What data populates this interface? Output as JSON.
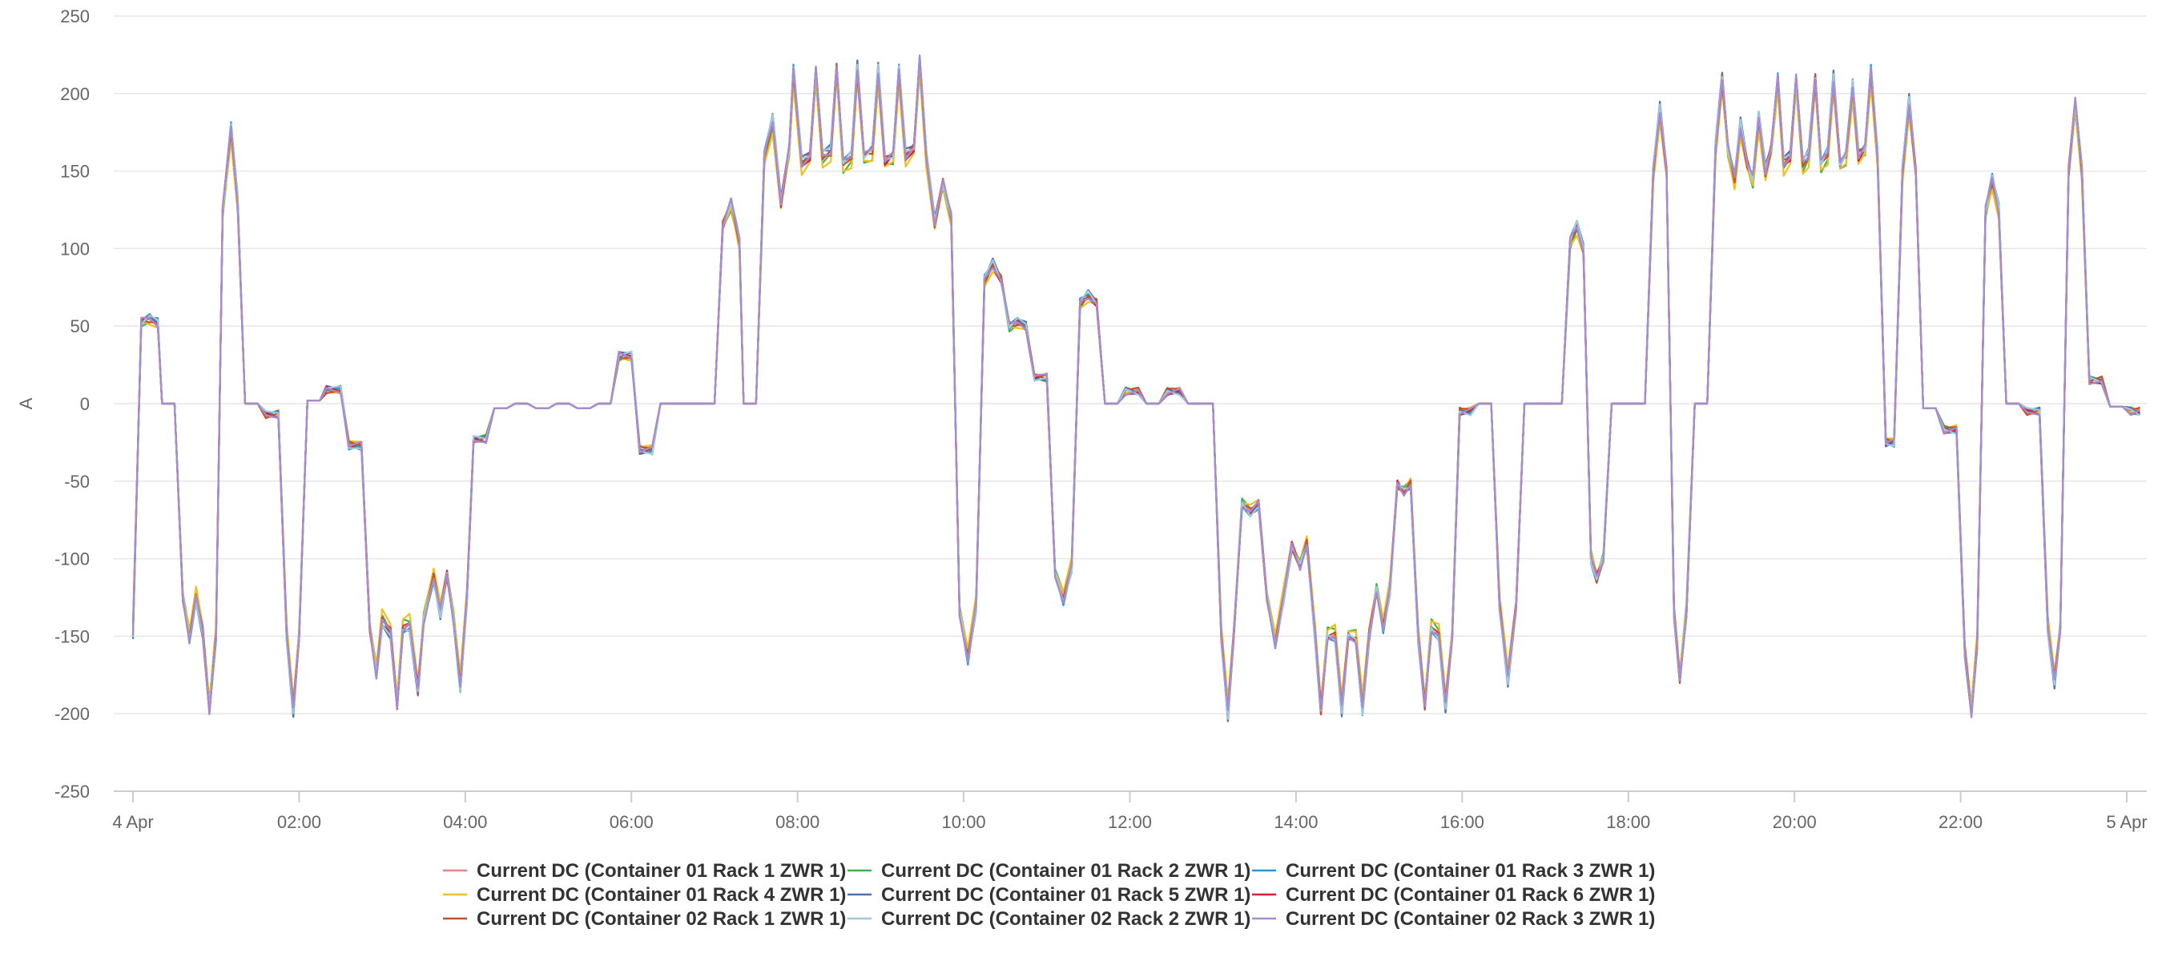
{
  "chart_data": {
    "type": "line",
    "ylabel": "A",
    "ylim": [
      -250,
      250
    ],
    "yticks": [
      250,
      200,
      150,
      100,
      50,
      0,
      -50,
      -100,
      -150,
      -200,
      -250
    ],
    "xlim": [
      0,
      24
    ],
    "xticks": [
      {
        "x": 0,
        "label": "4 Apr"
      },
      {
        "x": 2,
        "label": "02:00"
      },
      {
        "x": 4,
        "label": "04:00"
      },
      {
        "x": 6,
        "label": "06:00"
      },
      {
        "x": 8,
        "label": "08:00"
      },
      {
        "x": 10,
        "label": "10:00"
      },
      {
        "x": 12,
        "label": "12:00"
      },
      {
        "x": 14,
        "label": "14:00"
      },
      {
        "x": 16,
        "label": "16:00"
      },
      {
        "x": 18,
        "label": "18:00"
      },
      {
        "x": 20,
        "label": "20:00"
      },
      {
        "x": 22,
        "label": "22:00"
      },
      {
        "x": 24,
        "label": "5 Apr"
      }
    ],
    "grid": true,
    "legend_position": "bottom",
    "x_unit": "hours since 4 Apr 00:00",
    "base_profile": [
      [
        0.0,
        -148
      ],
      [
        0.1,
        53
      ],
      [
        0.2,
        55
      ],
      [
        0.3,
        52
      ],
      [
        0.35,
        0
      ],
      [
        0.5,
        0
      ],
      [
        0.6,
        -125
      ],
      [
        0.68,
        -152
      ],
      [
        0.76,
        -125
      ],
      [
        0.84,
        -148
      ],
      [
        0.92,
        -198
      ],
      [
        1.0,
        -150
      ],
      [
        1.08,
        125
      ],
      [
        1.18,
        178
      ],
      [
        1.26,
        130
      ],
      [
        1.35,
        0
      ],
      [
        1.5,
        0
      ],
      [
        1.6,
        -7
      ],
      [
        1.75,
        -7
      ],
      [
        1.85,
        -150
      ],
      [
        1.93,
        -198
      ],
      [
        2.0,
        -150
      ],
      [
        2.1,
        2
      ],
      [
        2.25,
        2
      ],
      [
        2.33,
        9
      ],
      [
        2.5,
        9
      ],
      [
        2.6,
        -27
      ],
      [
        2.75,
        -27
      ],
      [
        2.85,
        -145
      ],
      [
        2.93,
        -175
      ],
      [
        3.0,
        -140
      ],
      [
        3.1,
        -148
      ],
      [
        3.18,
        -195
      ],
      [
        3.25,
        -145
      ],
      [
        3.33,
        -143
      ],
      [
        3.43,
        -185
      ],
      [
        3.5,
        -140
      ],
      [
        3.62,
        -112
      ],
      [
        3.7,
        -135
      ],
      [
        3.78,
        -110
      ],
      [
        3.86,
        -140
      ],
      [
        3.94,
        -183
      ],
      [
        4.02,
        -125
      ],
      [
        4.1,
        -23
      ],
      [
        4.25,
        -23
      ],
      [
        4.35,
        -3
      ],
      [
        4.5,
        -3
      ],
      [
        4.6,
        0
      ],
      [
        4.75,
        0
      ],
      [
        4.85,
        -3
      ],
      [
        5.0,
        -3
      ],
      [
        5.1,
        0
      ],
      [
        5.25,
        0
      ],
      [
        5.35,
        -3
      ],
      [
        5.5,
        -3
      ],
      [
        5.6,
        0
      ],
      [
        5.75,
        0
      ],
      [
        5.85,
        31
      ],
      [
        6.0,
        31
      ],
      [
        6.1,
        -30
      ],
      [
        6.25,
        -30
      ],
      [
        6.35,
        0
      ],
      [
        7.0,
        0
      ],
      [
        7.1,
        115
      ],
      [
        7.2,
        130
      ],
      [
        7.3,
        105
      ],
      [
        7.35,
        0
      ],
      [
        7.5,
        0
      ],
      [
        7.6,
        160
      ],
      [
        7.7,
        183
      ],
      [
        7.8,
        130
      ],
      [
        7.9,
        165
      ],
      [
        7.95,
        215
      ],
      [
        8.05,
        155
      ],
      [
        8.15,
        160
      ],
      [
        8.22,
        215
      ],
      [
        8.3,
        160
      ],
      [
        8.4,
        163
      ],
      [
        8.47,
        217
      ],
      [
        8.55,
        155
      ],
      [
        8.65,
        160
      ],
      [
        8.72,
        217
      ],
      [
        8.8,
        160
      ],
      [
        8.9,
        163
      ],
      [
        8.97,
        215
      ],
      [
        9.05,
        157
      ],
      [
        9.15,
        160
      ],
      [
        9.22,
        215
      ],
      [
        9.3,
        160
      ],
      [
        9.4,
        165
      ],
      [
        9.47,
        222
      ],
      [
        9.55,
        160
      ],
      [
        9.65,
        117
      ],
      [
        9.75,
        143
      ],
      [
        9.85,
        120
      ],
      [
        9.95,
        -135
      ],
      [
        10.05,
        -165
      ],
      [
        10.15,
        -130
      ],
      [
        10.25,
        80
      ],
      [
        10.35,
        90
      ],
      [
        10.45,
        80
      ],
      [
        10.55,
        50
      ],
      [
        10.65,
        53
      ],
      [
        10.75,
        50
      ],
      [
        10.85,
        17
      ],
      [
        11.0,
        17
      ],
      [
        11.1,
        -110
      ],
      [
        11.2,
        -127
      ],
      [
        11.3,
        -105
      ],
      [
        11.4,
        65
      ],
      [
        11.5,
        70
      ],
      [
        11.6,
        65
      ],
      [
        11.7,
        0
      ],
      [
        11.85,
        0
      ],
      [
        11.95,
        8
      ],
      [
        12.1,
        8
      ],
      [
        12.2,
        0
      ],
      [
        12.35,
        0
      ],
      [
        12.45,
        8
      ],
      [
        12.6,
        8
      ],
      [
        12.7,
        0
      ],
      [
        13.0,
        0
      ],
      [
        13.1,
        -150
      ],
      [
        13.18,
        -200
      ],
      [
        13.25,
        -150
      ],
      [
        13.35,
        -65
      ],
      [
        13.45,
        -70
      ],
      [
        13.55,
        -65
      ],
      [
        13.65,
        -125
      ],
      [
        13.75,
        -155
      ],
      [
        13.85,
        -125
      ],
      [
        13.95,
        -92
      ],
      [
        14.05,
        -105
      ],
      [
        14.13,
        -90
      ],
      [
        14.23,
        -150
      ],
      [
        14.3,
        -198
      ],
      [
        14.38,
        -150
      ],
      [
        14.47,
        -150
      ],
      [
        14.55,
        -197
      ],
      [
        14.63,
        -150
      ],
      [
        14.72,
        -152
      ],
      [
        14.8,
        -197
      ],
      [
        14.88,
        -150
      ],
      [
        14.97,
        -120
      ],
      [
        15.05,
        -145
      ],
      [
        15.13,
        -120
      ],
      [
        15.22,
        -52
      ],
      [
        15.3,
        -57
      ],
      [
        15.38,
        -52
      ],
      [
        15.47,
        -150
      ],
      [
        15.55,
        -195
      ],
      [
        15.63,
        -145
      ],
      [
        15.72,
        -150
      ],
      [
        15.8,
        -195
      ],
      [
        15.88,
        -150
      ],
      [
        15.97,
        -5
      ],
      [
        16.1,
        -5
      ],
      [
        16.2,
        0
      ],
      [
        16.35,
        0
      ],
      [
        16.45,
        -130
      ],
      [
        16.55,
        -178
      ],
      [
        16.65,
        -130
      ],
      [
        16.75,
        0
      ],
      [
        17.2,
        0
      ],
      [
        17.3,
        105
      ],
      [
        17.38,
        115
      ],
      [
        17.46,
        100
      ],
      [
        17.55,
        -100
      ],
      [
        17.62,
        -113
      ],
      [
        17.7,
        -100
      ],
      [
        17.8,
        0
      ],
      [
        18.2,
        0
      ],
      [
        18.3,
        150
      ],
      [
        18.38,
        190
      ],
      [
        18.46,
        150
      ],
      [
        18.55,
        -135
      ],
      [
        18.62,
        -178
      ],
      [
        18.7,
        -135
      ],
      [
        18.8,
        0
      ],
      [
        18.95,
        0
      ],
      [
        19.05,
        165
      ],
      [
        19.13,
        210
      ],
      [
        19.2,
        165
      ],
      [
        19.28,
        145
      ],
      [
        19.35,
        180
      ],
      [
        19.43,
        155
      ],
      [
        19.5,
        145
      ],
      [
        19.57,
        185
      ],
      [
        19.65,
        150
      ],
      [
        19.72,
        165
      ],
      [
        19.8,
        210
      ],
      [
        19.87,
        155
      ],
      [
        19.95,
        160
      ],
      [
        20.02,
        210
      ],
      [
        20.1,
        155
      ],
      [
        20.17,
        160
      ],
      [
        20.25,
        210
      ],
      [
        20.32,
        155
      ],
      [
        20.4,
        162
      ],
      [
        20.47,
        210
      ],
      [
        20.55,
        155
      ],
      [
        20.62,
        160
      ],
      [
        20.7,
        205
      ],
      [
        20.77,
        160
      ],
      [
        20.85,
        165
      ],
      [
        20.92,
        215
      ],
      [
        21.0,
        160
      ],
      [
        21.1,
        -25
      ],
      [
        21.2,
        -25
      ],
      [
        21.3,
        150
      ],
      [
        21.38,
        195
      ],
      [
        21.46,
        150
      ],
      [
        21.55,
        -3
      ],
      [
        21.7,
        -3
      ],
      [
        21.8,
        -17
      ],
      [
        21.95,
        -17
      ],
      [
        22.05,
        -160
      ],
      [
        22.13,
        -200
      ],
      [
        22.2,
        -155
      ],
      [
        22.3,
        125
      ],
      [
        22.38,
        145
      ],
      [
        22.46,
        125
      ],
      [
        22.55,
        0
      ],
      [
        22.7,
        0
      ],
      [
        22.8,
        -5
      ],
      [
        22.95,
        -5
      ],
      [
        23.05,
        -145
      ],
      [
        23.13,
        -180
      ],
      [
        23.2,
        -145
      ],
      [
        23.3,
        150
      ],
      [
        23.38,
        195
      ],
      [
        23.46,
        150
      ],
      [
        23.55,
        15
      ],
      [
        23.7,
        15
      ],
      [
        23.8,
        -2
      ],
      [
        23.95,
        -2
      ],
      [
        24.05,
        -5
      ],
      [
        24.15,
        -5
      ]
    ],
    "series": [
      {
        "name": "Current DC (Container 01 Rack 1 ZWR 1)",
        "color": "#f08080",
        "offset": 0
      },
      {
        "name": "Current DC (Container 01 Rack 2 ZWR 1)",
        "color": "#3cb44b",
        "offset": -4
      },
      {
        "name": "Current DC (Container 01 Rack 3 ZWR 1)",
        "color": "#1f9bd8",
        "offset": 1
      },
      {
        "name": "Current DC (Container 01 Rack 4 ZWR 1)",
        "color": "#f0c020",
        "offset": -6
      },
      {
        "name": "Current DC (Container 01 Rack 5 ZWR 1)",
        "color": "#4a6fb5",
        "offset": 2
      },
      {
        "name": "Current DC (Container 01 Rack 6 ZWR 1)",
        "color": "#dd1e2f",
        "offset": -1
      },
      {
        "name": "Current DC (Container 02 Rack 1 ZWR 1)",
        "color": "#c8502a",
        "offset": 0
      },
      {
        "name": "Current DC (Container 02 Rack 2 ZWR 1)",
        "color": "#9ecae1",
        "offset": 1
      },
      {
        "name": "Current DC (Container 02 Rack 3 ZWR 1)",
        "color": "#a58bd0",
        "offset": 0
      }
    ]
  }
}
